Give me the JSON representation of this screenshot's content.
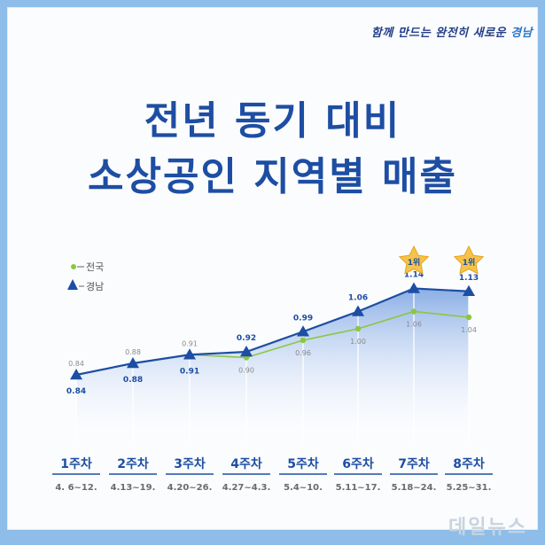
{
  "header": {
    "slogan_a": "함께 만드는 ",
    "slogan_b": "완전히 새로운 ",
    "slogan_c": "경남"
  },
  "title": {
    "line1": "전년 동기 대비",
    "line2": "소상공인 지역별 매출"
  },
  "watermark": "데일뉴스",
  "colors": {
    "national": "#8cc63f",
    "gyeongnam": "#1d4ea3",
    "title": "#1d4ea3",
    "week_label": "#1d4ea3",
    "star": "#f6c34a"
  },
  "chart_data": {
    "type": "line",
    "categories": [
      "1주차",
      "2주차",
      "3주차",
      "4주차",
      "5주차",
      "6주차",
      "7주차",
      "8주차"
    ],
    "date_ranges": [
      "4. 6~12.",
      "4.13~19.",
      "4.20~26.",
      "4.27~4.3.",
      "5.4~10.",
      "5.11~17.",
      "5.18~24.",
      "5.25~31."
    ],
    "series": [
      {
        "name": "전국",
        "marker": "circle",
        "values": [
          0.84,
          0.88,
          0.91,
          0.9,
          0.96,
          1.0,
          1.06,
          1.04
        ]
      },
      {
        "name": "경남",
        "marker": "triangle",
        "values": [
          0.84,
          0.88,
          0.91,
          0.92,
          0.99,
          1.06,
          1.14,
          1.13
        ]
      }
    ],
    "data_labels": {
      "전국": [
        "0.84",
        "0.88",
        "0.91",
        "0.90",
        "0.96",
        "1.00",
        "1.06",
        "1.04"
      ],
      "경남": [
        "0.84",
        "0.88",
        "0.91",
        "0.92",
        "0.99",
        "1.06",
        "1.14",
        "1.13"
      ]
    },
    "badges": [
      {
        "week_index": 6,
        "text": "1위"
      },
      {
        "week_index": 7,
        "text": "1위"
      }
    ],
    "legend_position": "top-left",
    "grid": false
  }
}
